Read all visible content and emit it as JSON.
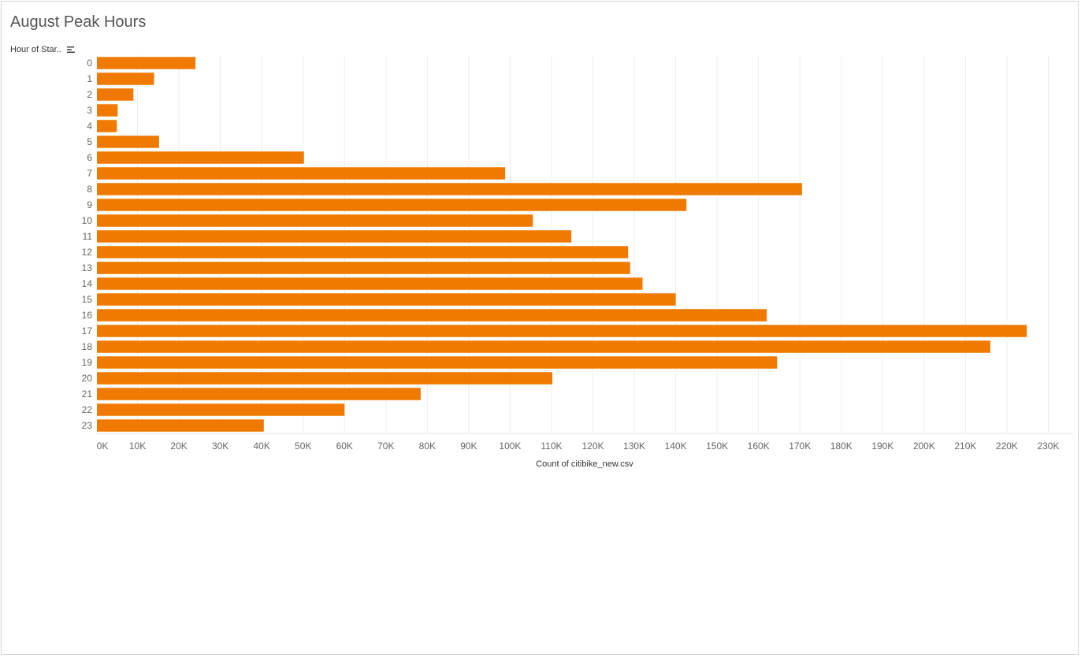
{
  "title": "August Peak Hours",
  "row_header": "Hour of Star..",
  "sort_icon": "sort-descending-icon",
  "colors": {
    "bar": "#F07A00",
    "grid": "#eeeeee",
    "tick_text": "#666666"
  },
  "chart_data": {
    "type": "bar",
    "orientation": "horizontal",
    "title": "August Peak Hours",
    "ylabel": "Hour of Star..",
    "xlabel": "Count of citibike_new.csv",
    "categories": [
      "0",
      "1",
      "2",
      "3",
      "4",
      "5",
      "6",
      "7",
      "8",
      "9",
      "10",
      "11",
      "12",
      "13",
      "14",
      "15",
      "16",
      "17",
      "18",
      "19",
      "20",
      "21",
      "22",
      "23"
    ],
    "values": [
      24000,
      14000,
      9000,
      5200,
      5000,
      15200,
      50200,
      98800,
      170500,
      142600,
      105500,
      114800,
      128500,
      129000,
      132000,
      140000,
      162000,
      224800,
      216000,
      164500,
      110200,
      78400,
      60000,
      40500
    ],
    "xlim": [
      0,
      236000
    ],
    "xticks": [
      0,
      10000,
      20000,
      30000,
      40000,
      50000,
      60000,
      70000,
      80000,
      90000,
      100000,
      110000,
      120000,
      130000,
      140000,
      150000,
      160000,
      170000,
      180000,
      190000,
      200000,
      210000,
      220000,
      230000
    ],
    "xtick_labels": [
      "0K",
      "10K",
      "20K",
      "30K",
      "40K",
      "50K",
      "60K",
      "70K",
      "80K",
      "90K",
      "100K",
      "110K",
      "120K",
      "130K",
      "140K",
      "150K",
      "160K",
      "170K",
      "180K",
      "190K",
      "200K",
      "210K",
      "220K",
      "230K"
    ],
    "grid": true
  }
}
